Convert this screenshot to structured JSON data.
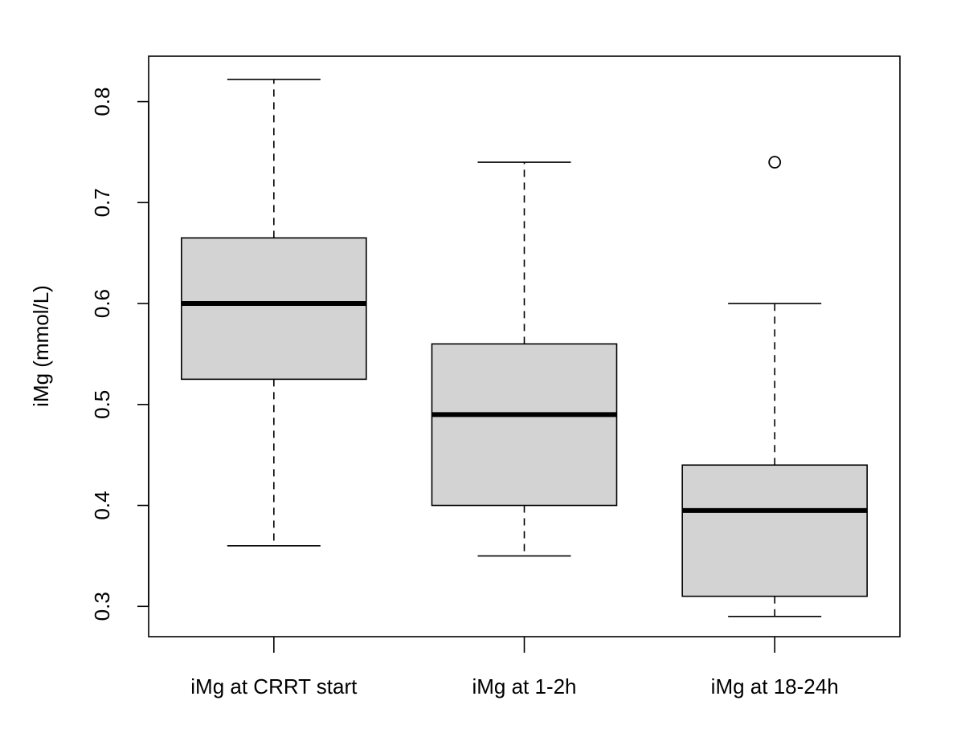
{
  "chart_data": {
    "type": "box",
    "ylabel": "iMg (mmol/L)",
    "xlabel": "",
    "ylim": [
      0.27,
      0.845
    ],
    "yticks": [
      0.3,
      0.4,
      0.5,
      0.6,
      0.7,
      0.8
    ],
    "ytick_labels": [
      "0.3",
      "0.4",
      "0.5",
      "0.6",
      "0.7",
      "0.8"
    ],
    "grid": false,
    "box_fill": "#d3d3d3",
    "line_color": "#000000",
    "categories": [
      "iMg at CRRT start",
      "iMg at 1-2h",
      "iMg at 18-24h"
    ],
    "boxes": [
      {
        "label": "iMg at CRRT start",
        "whisker_low": 0.36,
        "q1": 0.525,
        "median": 0.6,
        "q3": 0.665,
        "whisker_high": 0.822,
        "outliers": []
      },
      {
        "label": "iMg at 1-2h",
        "whisker_low": 0.35,
        "q1": 0.4,
        "median": 0.49,
        "q3": 0.56,
        "whisker_high": 0.74,
        "outliers": []
      },
      {
        "label": "iMg at 18-24h",
        "whisker_low": 0.29,
        "q1": 0.31,
        "median": 0.395,
        "q3": 0.44,
        "whisker_high": 0.6,
        "outliers": [
          0.74
        ]
      }
    ]
  }
}
